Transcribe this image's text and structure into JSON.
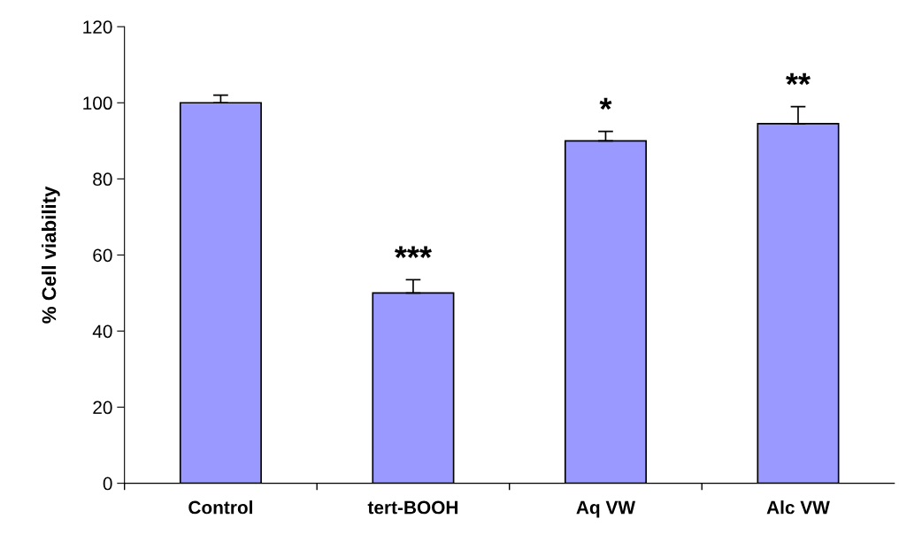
{
  "chart_data": {
    "type": "bar",
    "ylabel": "% Cell viability",
    "categories": [
      "Control",
      "tert-BOOH",
      "Aq VW",
      "Alc VW"
    ],
    "values": [
      100,
      50,
      90,
      94.5
    ],
    "color": "#9999ff",
    "errors": [
      [
        100,
        102
      ],
      [
        50,
        53.5
      ],
      [
        90,
        92.5
      ],
      [
        94.5,
        99
      ]
    ],
    "ylim": [
      0,
      120
    ],
    "yticks": [
      0,
      20,
      40,
      60,
      80,
      100,
      120
    ],
    "grid": false,
    "annotations": [
      {
        "text": "***",
        "x": "tert-BOOH",
        "y": 53.5
      },
      {
        "text": "*",
        "x": "Aq VW",
        "y": 92.5
      },
      {
        "text": "**",
        "x": "Alc VW",
        "y": 99
      }
    ]
  }
}
